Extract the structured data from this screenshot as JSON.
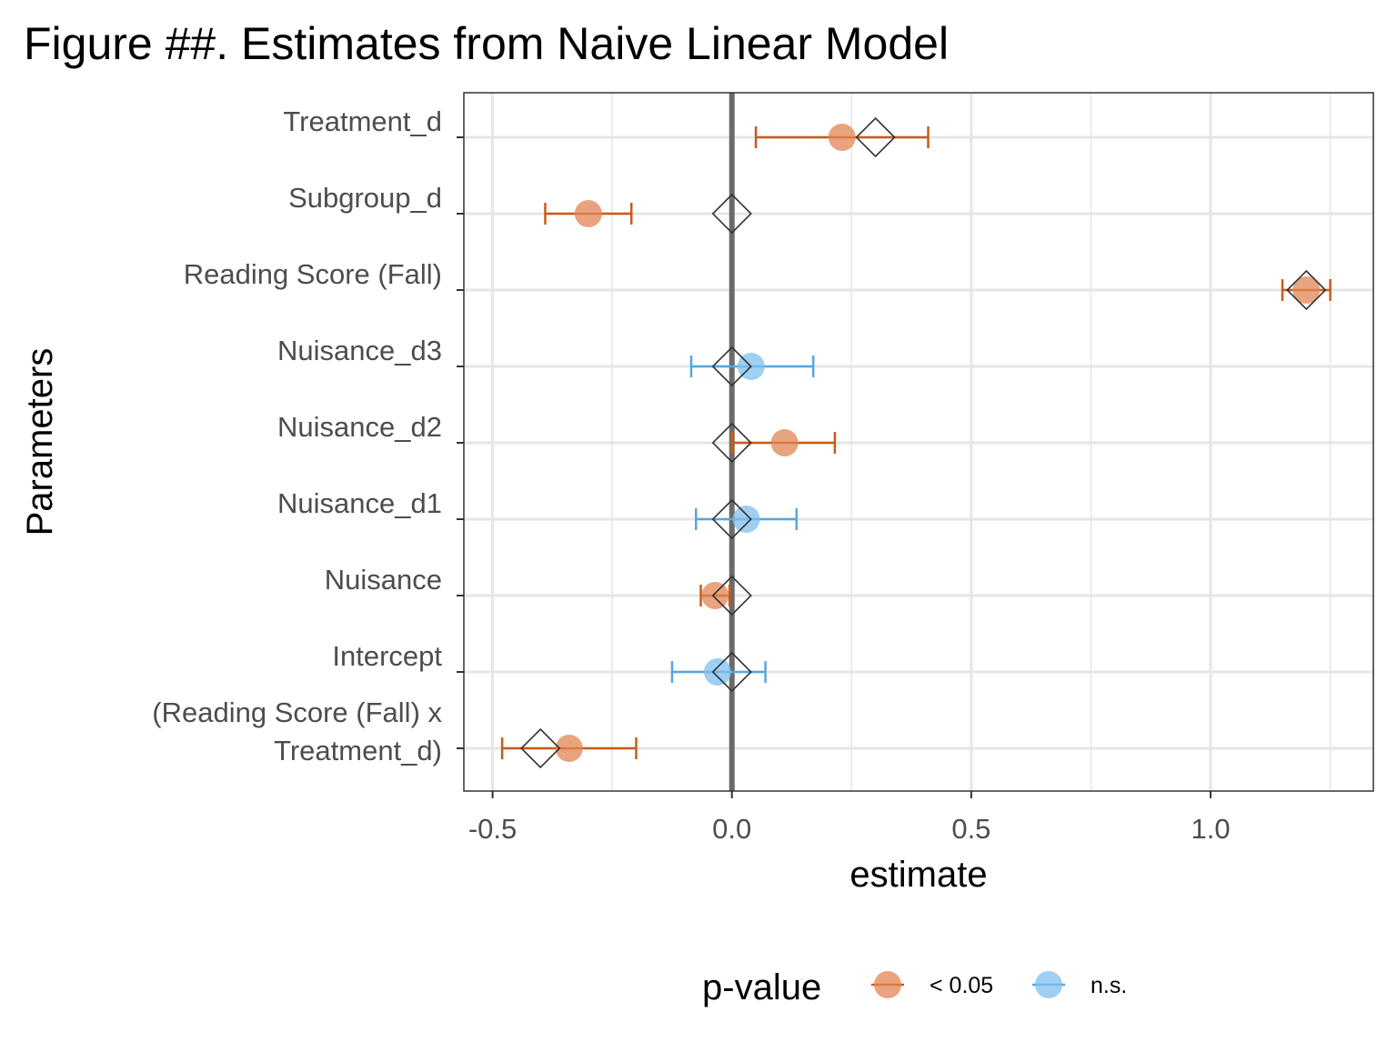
{
  "chart_data": {
    "type": "scatter",
    "title": "Figure ##. Estimates from Naive Linear Model",
    "xlabel": "estimate",
    "ylabel": "Parameters",
    "xlim": [
      -0.56,
      1.34
    ],
    "xticks": [
      -0.5,
      0.0,
      0.5,
      1.0
    ],
    "xtick_labels": [
      "-0.5",
      "0.0",
      "0.5",
      "1.0"
    ],
    "grid": true,
    "reference_line_x": 0,
    "categories": [
      [
        "Treatment_d"
      ],
      [
        "Subgroup_d"
      ],
      [
        "Reading Score (Fall)"
      ],
      [
        "Nuisance_d3"
      ],
      [
        "Nuisance_d2"
      ],
      [
        "Nuisance_d1"
      ],
      [
        "Nuisance"
      ],
      [
        "Intercept"
      ],
      [
        "(Reading Score (Fall) x",
        "Treatment_d)"
      ]
    ],
    "estimates": [
      {
        "estimate": 0.23,
        "ci_low": 0.05,
        "ci_high": 0.41,
        "group": "< 0.05",
        "true_value": 0.3
      },
      {
        "estimate": -0.3,
        "ci_low": -0.39,
        "ci_high": -0.21,
        "group": "< 0.05",
        "true_value": 0.0
      },
      {
        "estimate": 1.2,
        "ci_low": 1.15,
        "ci_high": 1.25,
        "group": "< 0.05",
        "true_value": 1.2
      },
      {
        "estimate": 0.04,
        "ci_low": -0.085,
        "ci_high": 0.17,
        "group": "n.s.",
        "true_value": 0.0
      },
      {
        "estimate": 0.11,
        "ci_low": 0.0,
        "ci_high": 0.215,
        "group": "< 0.05",
        "true_value": 0.0
      },
      {
        "estimate": 0.03,
        "ci_low": -0.075,
        "ci_high": 0.135,
        "group": "n.s.",
        "true_value": 0.0
      },
      {
        "estimate": -0.035,
        "ci_low": -0.065,
        "ci_high": -0.005,
        "group": "< 0.05",
        "true_value": 0.0
      },
      {
        "estimate": -0.03,
        "ci_low": -0.125,
        "ci_high": 0.07,
        "group": "n.s.",
        "true_value": 0.0
      },
      {
        "estimate": -0.34,
        "ci_low": -0.48,
        "ci_high": -0.2,
        "group": "< 0.05",
        "true_value": -0.4
      }
    ],
    "legend": {
      "title": "p-value",
      "position": "bottom",
      "entries": [
        {
          "label": "< 0.05",
          "color": "#cc5a16",
          "fill": "#e08654"
        },
        {
          "label": "n.s.",
          "color": "#56a7e0",
          "fill": "#7fbfee"
        }
      ]
    },
    "colors": {
      "significant_line": "#cc5a16",
      "significant_fill": "#e08654",
      "ns_line": "#56a7e0",
      "ns_fill": "#7fbfee",
      "reference_line": "#6b6b6b",
      "grid": "#e6e6e6",
      "diamond": "#333333"
    }
  }
}
